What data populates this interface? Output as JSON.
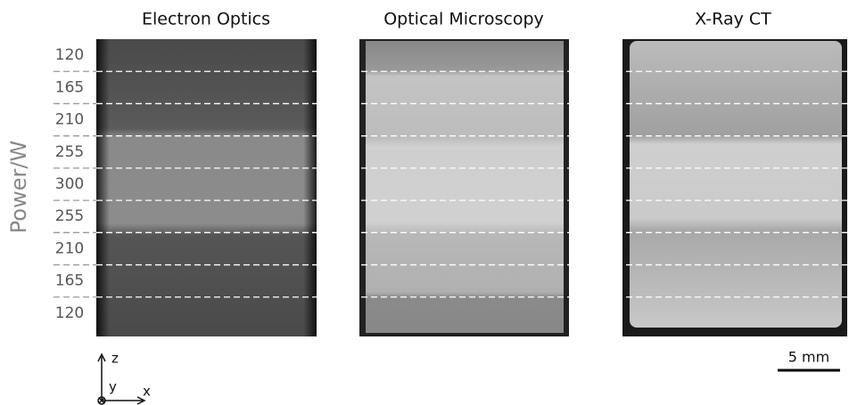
{
  "panels": [
    {
      "title": "Electron Optics"
    },
    {
      "title": "Optical Microscopy"
    },
    {
      "title": "X-Ray CT"
    }
  ],
  "y_label": "Power/W",
  "rows": [
    "120",
    "165",
    "210",
    "255",
    "300",
    "255",
    "210",
    "165",
    "120"
  ],
  "scale_bar": "5 mm",
  "axes": {
    "z": "z",
    "y": "y",
    "x": "x"
  }
}
